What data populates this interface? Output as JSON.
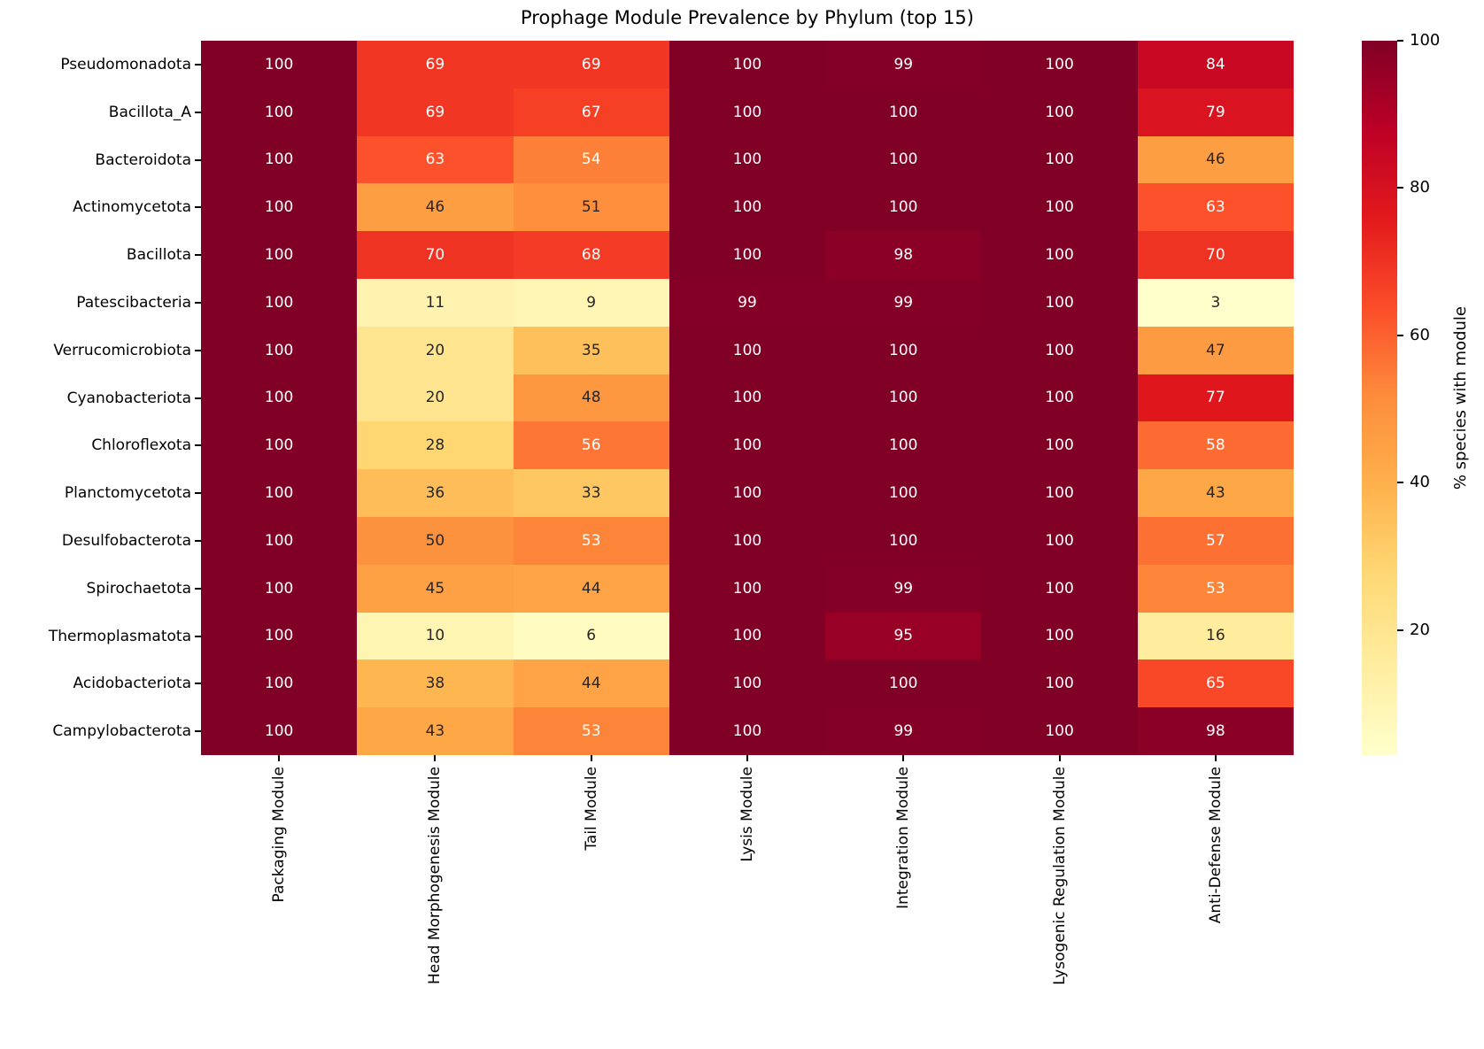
{
  "title": "Prophage Module Prevalence by Phylum (top 15)",
  "chart_data": {
    "type": "heatmap",
    "rows": [
      "Pseudomonadota",
      "Bacillota_A",
      "Bacteroidota",
      "Actinomycetota",
      "Bacillota",
      "Patescibacteria",
      "Verrucomicrobiota",
      "Cyanobacteriota",
      "Chloroflexota",
      "Planctomycetota",
      "Desulfobacterota",
      "Spirochaetota",
      "Thermoplasmatota",
      "Acidobacteriota",
      "Campylobacterota"
    ],
    "columns": [
      "Packaging Module",
      "Head Morphogenesis Module",
      "Tail Module",
      "Lysis Module",
      "Integration Module",
      "Lysogenic Regulation Module",
      "Anti-Defense Module"
    ],
    "values": [
      [
        100,
        69,
        69,
        100,
        99,
        100,
        84
      ],
      [
        100,
        69,
        67,
        100,
        100,
        100,
        79
      ],
      [
        100,
        63,
        54,
        100,
        100,
        100,
        46
      ],
      [
        100,
        46,
        51,
        100,
        100,
        100,
        63
      ],
      [
        100,
        70,
        68,
        100,
        98,
        100,
        70
      ],
      [
        100,
        11,
        9,
        99,
        99,
        100,
        3
      ],
      [
        100,
        20,
        35,
        100,
        100,
        100,
        47
      ],
      [
        100,
        20,
        48,
        100,
        100,
        100,
        77
      ],
      [
        100,
        28,
        56,
        100,
        100,
        100,
        58
      ],
      [
        100,
        36,
        33,
        100,
        100,
        100,
        43
      ],
      [
        100,
        50,
        53,
        100,
        100,
        100,
        57
      ],
      [
        100,
        45,
        44,
        100,
        99,
        100,
        53
      ],
      [
        100,
        10,
        6,
        100,
        95,
        100,
        16
      ],
      [
        100,
        38,
        44,
        100,
        100,
        100,
        65
      ],
      [
        100,
        43,
        53,
        100,
        99,
        100,
        98
      ]
    ],
    "colorbar": {
      "label": "% species with module",
      "ticks": [
        20,
        40,
        60,
        80,
        100
      ],
      "vmin": 3,
      "vmax": 100
    },
    "colormap_name": "YlOrRd",
    "colormap_colors": [
      "#ffffcc",
      "#ffeda0",
      "#fed976",
      "#feb24c",
      "#fd8d3c",
      "#fc4e2a",
      "#e31a1c",
      "#bd0026",
      "#800026"
    ],
    "annotation_text_colors": {
      "light_cells": "#262626",
      "dark_cells": "#ffffff"
    },
    "legend_position": "right",
    "grid": false
  }
}
